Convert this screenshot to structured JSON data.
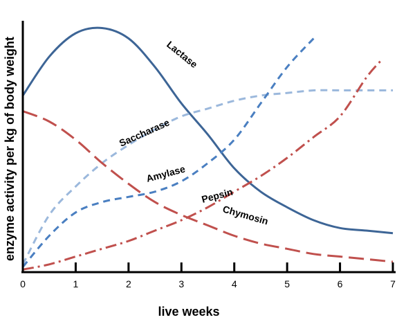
{
  "chart_data": {
    "type": "line",
    "xlabel": "live weeks",
    "ylabel": "enzyme activity per kg of body weight",
    "xlim": [
      0,
      7
    ],
    "ylim": [
      0,
      100
    ],
    "x_ticks": [
      "0",
      "1",
      "2",
      "3",
      "4",
      "5",
      "6",
      "7"
    ],
    "grid": false,
    "legend": "none",
    "series": [
      {
        "name": "Lactase",
        "style": "solid",
        "color": "#3d6596",
        "x": [
          0,
          0.5,
          1,
          1.5,
          2,
          2.5,
          3,
          3.5,
          4,
          4.5,
          5,
          5.5,
          6,
          6.5,
          7
        ],
        "y": [
          68,
          83,
          92,
          94,
          90,
          79,
          65,
          53,
          40,
          31,
          25,
          20,
          17,
          16,
          15
        ]
      },
      {
        "name": "Saccharase",
        "style": "dashed",
        "color": "#9bb8dc",
        "x": [
          0,
          0.5,
          1,
          1.5,
          2,
          2.5,
          3,
          3.5,
          4,
          4.5,
          5,
          5.5,
          6,
          6.5,
          7
        ],
        "y": [
          3,
          22,
          33,
          42,
          49,
          55,
          60,
          63,
          66,
          68,
          69,
          70,
          70,
          70,
          70
        ]
      },
      {
        "name": "Amylase",
        "style": "dashed",
        "color": "#4a7fc1",
        "x": [
          0,
          0.5,
          1,
          1.5,
          2,
          2.5,
          3,
          3.5,
          4,
          4.5,
          5,
          5.5
        ],
        "y": [
          2,
          14,
          23,
          27,
          29,
          31,
          35,
          42,
          51,
          65,
          79,
          90
        ]
      },
      {
        "name": "Pepsin",
        "style": "dashdot",
        "color": "#c0504d",
        "x": [
          0,
          0.5,
          1,
          1.5,
          2,
          2.5,
          3,
          3.5,
          4,
          4.5,
          5,
          5.5,
          6,
          6.5,
          6.8
        ],
        "y": [
          1,
          3,
          6,
          9,
          12,
          16,
          20,
          25,
          31,
          37,
          44,
          52,
          60,
          75,
          82
        ]
      },
      {
        "name": "Chymosin",
        "style": "longdash",
        "color": "#c0504d",
        "x": [
          0,
          0.5,
          1,
          1.5,
          2,
          2.5,
          3,
          3.5,
          4,
          4.5,
          5,
          5.5,
          6,
          6.5,
          7
        ],
        "y": [
          62,
          58,
          51,
          42,
          34,
          27,
          22,
          18,
          14,
          11,
          9,
          7,
          6,
          5,
          4
        ]
      }
    ]
  }
}
